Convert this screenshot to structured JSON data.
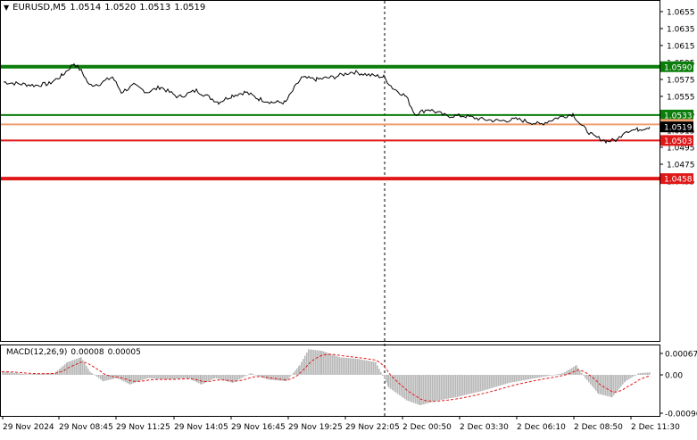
{
  "chart_header": {
    "menu_icon": "triangle-down-icon",
    "symbol": "EURUSD,M5",
    "open": "1.0514",
    "high": "1.0520",
    "low": "1.0513",
    "close": "1.0519"
  },
  "price_scale": {
    "ticks": [
      "1.0655",
      "1.0635",
      "1.0615",
      "1.0595",
      "1.0575",
      "1.0555",
      "1.0535",
      "1.0515",
      "1.0495",
      "1.0475",
      "1.0455"
    ]
  },
  "horizontal_lines": [
    {
      "label": "1.0590",
      "price": 1.059,
      "color": "#0a7d0a",
      "bold": true
    },
    {
      "label": "1.0533",
      "price": 1.0533,
      "color": "#0a7d0a",
      "bold": false
    },
    {
      "label": "1.0522",
      "price": 1.0522,
      "color": "#f0a070",
      "bold": false
    },
    {
      "label": "1.0503",
      "price": 1.0503,
      "color": "#e01818",
      "bold": false
    },
    {
      "label": "1.0458",
      "price": 1.0458,
      "color": "#e01818",
      "bold": true
    }
  ],
  "current_price": {
    "label": "1.0519",
    "price": 1.0519
  },
  "macd": {
    "label": "MACD(12,26,9)",
    "value": "0.00008",
    "signal": "0.00005",
    "ticks": [
      "0.00067",
      "0.00",
      "-0.00096"
    ]
  },
  "time_axis": {
    "labels": [
      "29 Nov 2024",
      "29 Nov 08:45",
      "29 Nov 11:25",
      "29 Nov 14:05",
      "29 Nov 16:45",
      "29 Nov 19:25",
      "29 Nov 22:05",
      "2 Dec 00:50",
      "2 Dec 03:30",
      "2 Dec 06:10",
      "2 Dec 08:50",
      "2 Dec 11:30"
    ]
  },
  "chart_data": {
    "type": "line",
    "x": [
      "29 Nov 2024",
      "29 Nov 08:45",
      "29 Nov 11:25",
      "29 Nov 14:05",
      "29 Nov 16:45",
      "29 Nov 19:25",
      "29 Nov 22:05",
      "2 Dec 00:50",
      "2 Dec 03:30",
      "2 Dec 06:10",
      "2 Dec 08:50",
      "2 Dec 11:30"
    ],
    "series": [
      {
        "values": [
          1.0572,
          1.0586,
          1.0566,
          1.0562,
          1.0548,
          1.0578,
          1.0584,
          1.0539,
          1.0526,
          1.0527,
          1.0502,
          1.0519
        ]
      }
    ],
    "ylim": [
      1.045,
      1.0665
    ],
    "xlabel": "",
    "ylabel": ""
  }
}
